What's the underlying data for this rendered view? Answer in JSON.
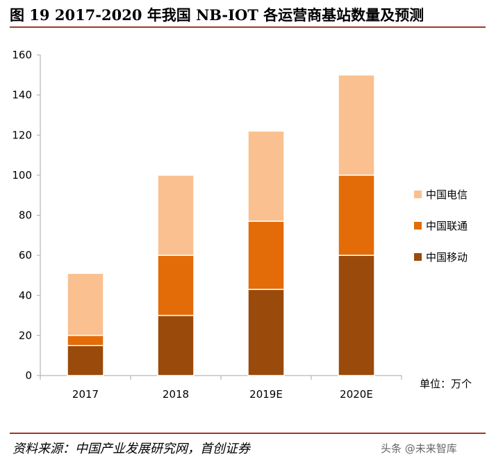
{
  "header": {
    "title": "图 19 2017-2020 年我国 NB-IOT 各运营商基站数量及预测"
  },
  "chart_data": {
    "type": "bar",
    "stacked": true,
    "categories": [
      "2017",
      "2018",
      "2019E",
      "2020E"
    ],
    "series": [
      {
        "name": "中国移动",
        "values": [
          15,
          30,
          43,
          60
        ],
        "color": "#9a4a0a"
      },
      {
        "name": "中国联通",
        "values": [
          5,
          30,
          34,
          40
        ],
        "color": "#e36c09"
      },
      {
        "name": "中国电信",
        "values": [
          31,
          40,
          45,
          50
        ],
        "color": "#fac090"
      }
    ],
    "legend_order": [
      "中国电信",
      "中国联通",
      "中国移动"
    ],
    "yticks": [
      "0",
      "20",
      "40",
      "60",
      "80",
      "100",
      "120",
      "140",
      "160"
    ],
    "ylim": [
      0,
      160
    ],
    "grid": false,
    "legend_position": "right",
    "unit_label": "单位：万个"
  },
  "footer": {
    "source": "资料来源：中国产业发展研究网，首创证券",
    "watermark": "头条 @未来智库"
  }
}
